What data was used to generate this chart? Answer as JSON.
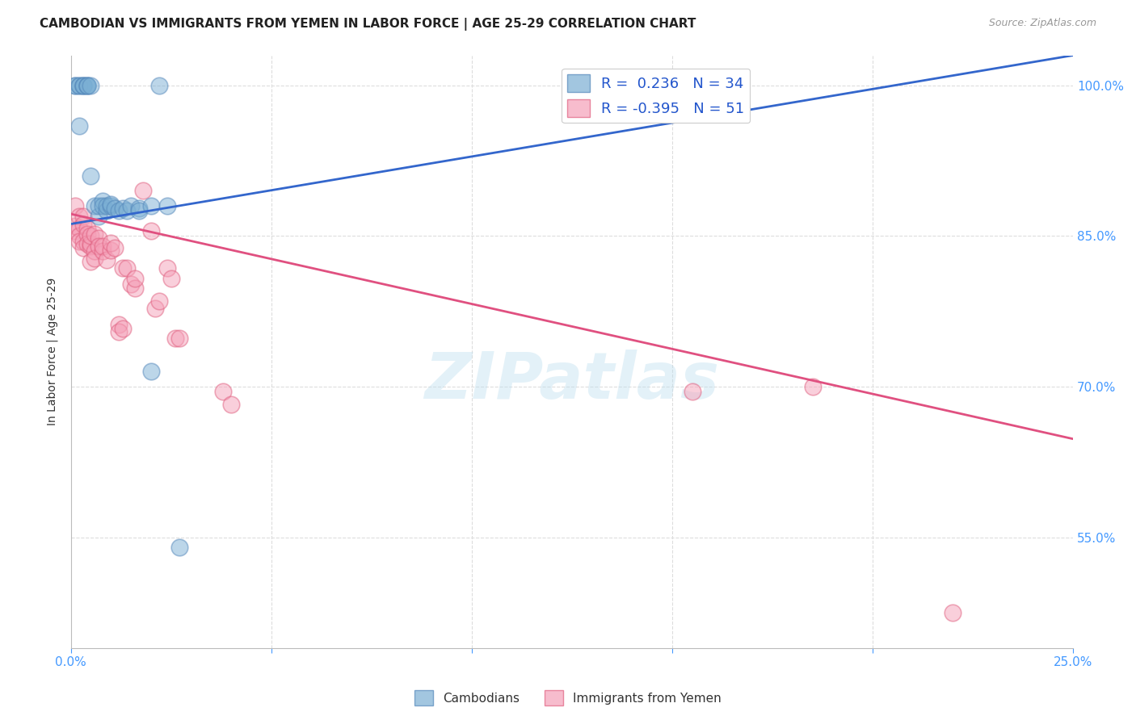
{
  "title": "CAMBODIAN VS IMMIGRANTS FROM YEMEN IN LABOR FORCE | AGE 25-29 CORRELATION CHART",
  "source": "Source: ZipAtlas.com",
  "ylabel": "In Labor Force | Age 25-29",
  "watermark": "ZIPatlas",
  "cambodian_points": [
    [
      0.001,
      1.0
    ],
    [
      0.001,
      1.0
    ],
    [
      0.002,
      1.0
    ],
    [
      0.002,
      1.0
    ],
    [
      0.002,
      0.96
    ],
    [
      0.003,
      1.0
    ],
    [
      0.003,
      1.0
    ],
    [
      0.003,
      1.0
    ],
    [
      0.004,
      1.0
    ],
    [
      0.004,
      1.0
    ],
    [
      0.004,
      1.0
    ],
    [
      0.005,
      1.0
    ],
    [
      0.005,
      0.91
    ],
    [
      0.006,
      0.88
    ],
    [
      0.007,
      0.87
    ],
    [
      0.007,
      0.88
    ],
    [
      0.008,
      0.885
    ],
    [
      0.008,
      0.88
    ],
    [
      0.009,
      0.875
    ],
    [
      0.009,
      0.88
    ],
    [
      0.01,
      0.88
    ],
    [
      0.01,
      0.882
    ],
    [
      0.011,
      0.878
    ],
    [
      0.012,
      0.875
    ],
    [
      0.013,
      0.878
    ],
    [
      0.014,
      0.875
    ],
    [
      0.015,
      0.88
    ],
    [
      0.017,
      0.878
    ],
    [
      0.017,
      0.875
    ],
    [
      0.02,
      0.715
    ],
    [
      0.02,
      0.88
    ],
    [
      0.022,
      1.0
    ],
    [
      0.024,
      0.88
    ],
    [
      0.027,
      0.54
    ]
  ],
  "yemen_points": [
    [
      0.001,
      0.88
    ],
    [
      0.001,
      0.86
    ],
    [
      0.001,
      0.855
    ],
    [
      0.002,
      0.87
    ],
    [
      0.002,
      0.858
    ],
    [
      0.002,
      0.85
    ],
    [
      0.002,
      0.845
    ],
    [
      0.003,
      0.87
    ],
    [
      0.003,
      0.862
    ],
    [
      0.003,
      0.845
    ],
    [
      0.003,
      0.838
    ],
    [
      0.004,
      0.858
    ],
    [
      0.004,
      0.852
    ],
    [
      0.004,
      0.842
    ],
    [
      0.005,
      0.84
    ],
    [
      0.005,
      0.825
    ],
    [
      0.005,
      0.842
    ],
    [
      0.005,
      0.85
    ],
    [
      0.006,
      0.852
    ],
    [
      0.006,
      0.835
    ],
    [
      0.006,
      0.828
    ],
    [
      0.007,
      0.848
    ],
    [
      0.007,
      0.84
    ],
    [
      0.008,
      0.835
    ],
    [
      0.008,
      0.84
    ],
    [
      0.009,
      0.826
    ],
    [
      0.01,
      0.836
    ],
    [
      0.01,
      0.843
    ],
    [
      0.011,
      0.838
    ],
    [
      0.012,
      0.762
    ],
    [
      0.012,
      0.755
    ],
    [
      0.013,
      0.818
    ],
    [
      0.013,
      0.758
    ],
    [
      0.014,
      0.818
    ],
    [
      0.015,
      0.802
    ],
    [
      0.016,
      0.798
    ],
    [
      0.016,
      0.808
    ],
    [
      0.018,
      0.895
    ],
    [
      0.02,
      0.855
    ],
    [
      0.021,
      0.778
    ],
    [
      0.022,
      0.785
    ],
    [
      0.024,
      0.818
    ],
    [
      0.025,
      0.808
    ],
    [
      0.026,
      0.748
    ],
    [
      0.027,
      0.748
    ],
    [
      0.038,
      0.695
    ],
    [
      0.04,
      0.682
    ],
    [
      0.155,
      0.695
    ],
    [
      0.185,
      0.7
    ],
    [
      0.22,
      0.475
    ]
  ],
  "cambodian_color": "#7bafd4",
  "cambodian_edge": "#5588bb",
  "yemen_color": "#f5a0b8",
  "yemen_edge": "#e06080",
  "trend_cambodian_color": "#3366cc",
  "trend_cambodian_dashed_color": "#aabbcc",
  "trend_yemen_color": "#e05080",
  "xlim": [
    0.0,
    0.25
  ],
  "ylim": [
    0.44,
    1.03
  ],
  "background_color": "#ffffff",
  "grid_color": "#dddddd",
  "title_fontsize": 11,
  "tick_color": "#4499ff",
  "ytick_positions": [
    1.0,
    0.85,
    0.7,
    0.55
  ],
  "ytick_labels": [
    "100.0%",
    "85.0%",
    "70.0%",
    "55.0%"
  ],
  "xtick_positions": [
    0.0,
    0.05,
    0.1,
    0.15,
    0.2,
    0.25
  ],
  "cam_trend_x": [
    0.0,
    0.25
  ],
  "cam_trend_y": [
    0.862,
    1.03
  ],
  "yem_trend_x": [
    0.0,
    0.25
  ],
  "yem_trend_y": [
    0.872,
    0.648
  ]
}
